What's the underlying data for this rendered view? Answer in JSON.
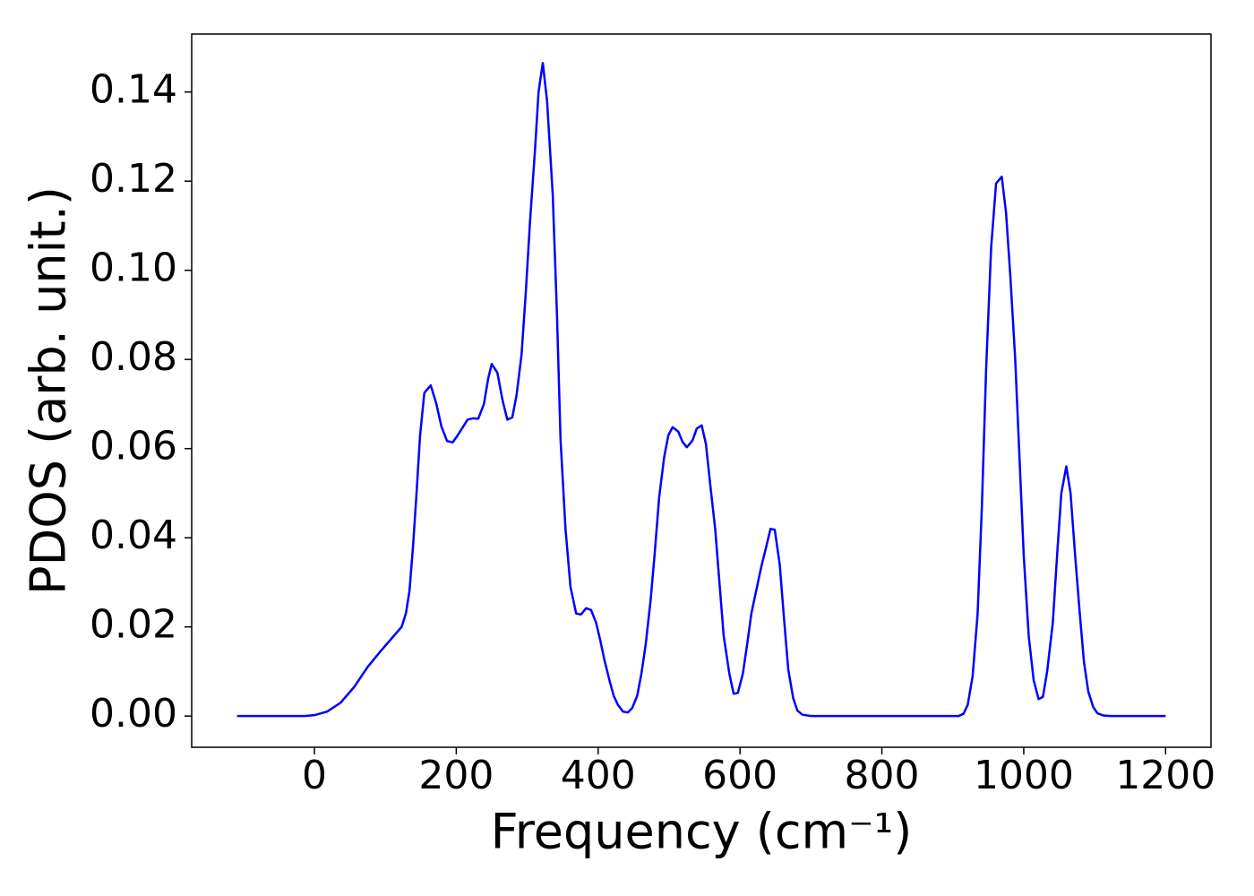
{
  "chart_data": {
    "type": "line",
    "xlabel": "Frequency (cm⁻¹)",
    "ylabel": "PDOS (arb. unit.)",
    "xlim": [
      -173,
      1264
    ],
    "ylim": [
      -0.007,
      0.153
    ],
    "xticks": [
      0,
      200,
      400,
      600,
      800,
      1000,
      1200
    ],
    "yticks": [
      {
        "value": 0,
        "label": "0.00"
      },
      {
        "value": 0.02,
        "label": "0.02"
      },
      {
        "value": 0.04,
        "label": "0.04"
      },
      {
        "value": 0.06,
        "label": "0.06"
      },
      {
        "value": 0.08,
        "label": "0.08"
      },
      {
        "value": 0.1,
        "label": "0.10"
      },
      {
        "value": 0.12,
        "label": "0.12"
      },
      {
        "value": 0.14,
        "label": "0.14"
      }
    ],
    "grid": false,
    "series": [
      {
        "color": "#0000ff",
        "x": [
          -109,
          -14,
          0,
          18,
          37,
          56,
          75,
          93,
          112,
          123,
          129,
          134,
          139,
          144,
          149,
          155,
          164,
          172,
          179,
          187,
          195,
          202,
          210,
          216,
          224,
          231,
          239,
          245,
          250,
          258,
          265,
          272,
          279,
          285,
          292,
          298,
          304,
          311,
          316,
          322,
          328,
          336,
          342,
          347,
          354,
          361,
          369,
          376,
          383,
          390,
          397,
          403,
          409,
          416,
          422,
          428,
          435,
          442,
          448,
          455,
          461,
          467,
          474,
          480,
          486,
          493,
          499,
          505,
          513,
          519,
          525,
          533,
          539,
          546,
          552,
          558,
          565,
          571,
          577,
          585,
          591,
          597,
          604,
          610,
          616,
          624,
          630,
          637,
          643,
          649,
          656,
          662,
          668,
          675,
          681,
          688,
          701,
          908,
          915,
          921,
          928,
          935,
          941,
          947,
          954,
          961,
          969,
          975,
          981,
          988,
          994,
          1000,
          1007,
          1014,
          1021,
          1027,
          1033,
          1041,
          1047,
          1053,
          1060,
          1066,
          1072,
          1079,
          1085,
          1091,
          1098,
          1104,
          1113,
          1123,
          1200
        ],
        "values": [
          0,
          0,
          0.0002,
          0.001,
          0.003,
          0.0065,
          0.011,
          0.0145,
          0.018,
          0.02,
          0.023,
          0.028,
          0.038,
          0.05,
          0.063,
          0.0725,
          0.0742,
          0.07,
          0.065,
          0.0617,
          0.0614,
          0.063,
          0.065,
          0.0665,
          0.0668,
          0.0667,
          0.07,
          0.0757,
          0.079,
          0.077,
          0.071,
          0.0665,
          0.067,
          0.072,
          0.081,
          0.095,
          0.111,
          0.127,
          0.14,
          0.1465,
          0.138,
          0.117,
          0.09,
          0.062,
          0.042,
          0.029,
          0.023,
          0.0228,
          0.0242,
          0.0238,
          0.021,
          0.017,
          0.0125,
          0.008,
          0.0045,
          0.0025,
          0.001,
          0.0008,
          0.0018,
          0.0045,
          0.0095,
          0.016,
          0.026,
          0.037,
          0.049,
          0.058,
          0.063,
          0.0648,
          0.0638,
          0.0615,
          0.0603,
          0.0618,
          0.0645,
          0.0652,
          0.061,
          0.052,
          0.042,
          0.03,
          0.018,
          0.0095,
          0.005,
          0.0052,
          0.0095,
          0.016,
          0.023,
          0.029,
          0.0335,
          0.038,
          0.042,
          0.0418,
          0.034,
          0.022,
          0.0105,
          0.004,
          0.0012,
          0.0003,
          0,
          0,
          0.0005,
          0.0025,
          0.009,
          0.023,
          0.047,
          0.078,
          0.105,
          0.1195,
          0.121,
          0.113,
          0.099,
          0.08,
          0.058,
          0.036,
          0.018,
          0.008,
          0.0038,
          0.0043,
          0.01,
          0.021,
          0.036,
          0.05,
          0.056,
          0.05,
          0.037,
          0.023,
          0.012,
          0.0055,
          0.002,
          0.0006,
          0.0001,
          0,
          0
        ]
      }
    ]
  }
}
